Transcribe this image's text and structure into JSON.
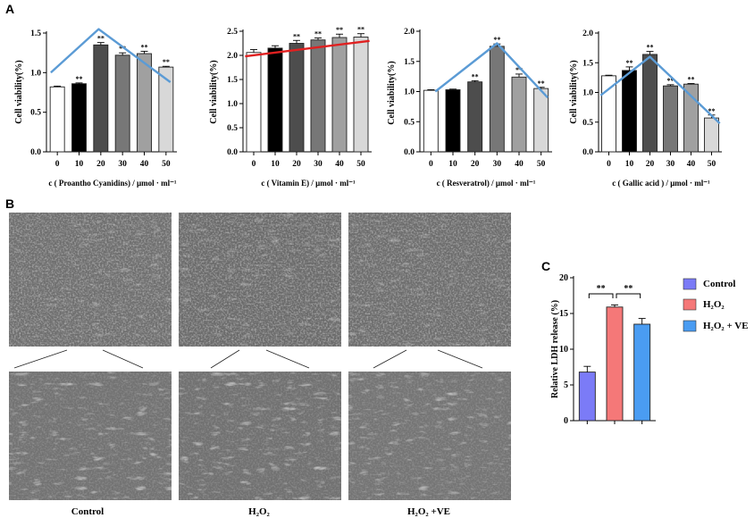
{
  "panels": {
    "a": "A",
    "b": "B",
    "c": "C"
  },
  "colors": {
    "bar_edge": "#222222",
    "blue_line": "#5b9bd5",
    "red_line": "#e02020"
  },
  "chart_data": [
    {
      "type": "bar",
      "categories": [
        "0",
        "10",
        "20",
        "30",
        "40",
        "50"
      ],
      "values": [
        0.82,
        0.86,
        1.35,
        1.22,
        1.24,
        1.07
      ],
      "errors": [
        0.01,
        0.01,
        0.03,
        0.03,
        0.03,
        0.01
      ],
      "significance": [
        "",
        "**",
        "**",
        "**",
        "**",
        "**"
      ],
      "bar_colors": [
        "#ffffff",
        "#000000",
        "#4d4d4d",
        "#777777",
        "#a0a0a0",
        "#d8d8d8"
      ],
      "ylabel": "Cell viability(%)",
      "xlabel": "c ( Proantho Cyanidins) / μmol · ml⁻¹",
      "ylim": [
        0,
        1.5
      ],
      "yticks": [
        "0.0",
        "0.5",
        "1.0",
        "1.5"
      ],
      "trend": {
        "color": "blue",
        "points": [
          [
            -0.3,
            1.0
          ],
          [
            1.9,
            1.55
          ],
          [
            5.2,
            0.88
          ]
        ]
      }
    },
    {
      "type": "bar",
      "categories": [
        "0",
        "10",
        "20",
        "30",
        "40",
        "50"
      ],
      "values": [
        2.06,
        2.15,
        2.25,
        2.32,
        2.37,
        2.38
      ],
      "errors": [
        0.06,
        0.05,
        0.06,
        0.04,
        0.07,
        0.07
      ],
      "significance": [
        "",
        "",
        "**",
        "**",
        "**",
        "**"
      ],
      "bar_colors": [
        "#ffffff",
        "#000000",
        "#4d4d4d",
        "#777777",
        "#a0a0a0",
        "#d8d8d8"
      ],
      "ylabel": "Cell viability(%)",
      "xlabel": "c ( Vitamin E) / μmol · ml⁻¹",
      "ylim": [
        0,
        2.5
      ],
      "yticks": [
        "0.0",
        "0.5",
        "1.0",
        "1.5",
        "2.0",
        "2.5"
      ],
      "trend": {
        "color": "red",
        "points": [
          [
            -0.4,
            1.98
          ],
          [
            5.4,
            2.3
          ]
        ]
      }
    },
    {
      "type": "bar",
      "categories": [
        "0",
        "10",
        "20",
        "30",
        "40",
        "50"
      ],
      "values": [
        1.02,
        1.03,
        1.16,
        1.75,
        1.24,
        1.05
      ],
      "errors": [
        0.01,
        0.01,
        0.02,
        0.04,
        0.05,
        0.02
      ],
      "significance": [
        "",
        "",
        "**",
        "**",
        "**",
        "**"
      ],
      "bar_colors": [
        "#ffffff",
        "#000000",
        "#4d4d4d",
        "#777777",
        "#a0a0a0",
        "#d8d8d8"
      ],
      "ylabel": "Cell viability(%)",
      "xlabel": "c ( Resveratrol) / μmol · ml⁻¹",
      "ylim": [
        0,
        2.0
      ],
      "yticks": [
        "0.0",
        "0.5",
        "1.0",
        "1.5",
        "2.0"
      ],
      "trend": {
        "color": "blue",
        "points": [
          [
            0.2,
            1.0
          ],
          [
            3.0,
            1.8
          ],
          [
            5.3,
            0.9
          ]
        ]
      }
    },
    {
      "type": "bar",
      "categories": [
        "0",
        "10",
        "20",
        "30",
        "40",
        "50"
      ],
      "values": [
        1.28,
        1.37,
        1.64,
        1.11,
        1.14,
        0.57
      ],
      "errors": [
        0.01,
        0.06,
        0.05,
        0.02,
        0.01,
        0.05
      ],
      "significance": [
        "",
        "**",
        "**",
        "**",
        "**",
        "**"
      ],
      "bar_colors": [
        "#ffffff",
        "#000000",
        "#4d4d4d",
        "#777777",
        "#a0a0a0",
        "#d8d8d8"
      ],
      "ylabel": "Cell viability(%)",
      "xlabel": "c ( Gallic acid ) / μmol · ml⁻¹",
      "ylim": [
        0,
        2.0
      ],
      "yticks": [
        "0.0",
        "0.5",
        "1.0",
        "1.5",
        "2.0"
      ],
      "trend": {
        "color": "blue",
        "points": [
          [
            -0.4,
            0.95
          ],
          [
            2.0,
            1.6
          ],
          [
            5.4,
            0.48
          ]
        ]
      }
    },
    {
      "type": "bar",
      "categories": [
        "Control",
        "H₂O₂",
        "H₂O₂ + VE"
      ],
      "values": [
        6.8,
        15.9,
        13.5
      ],
      "errors": [
        0.8,
        0.3,
        0.8
      ],
      "bar_colors": [
        "#7b7bf7",
        "#f57878",
        "#4a9cf2"
      ],
      "ylabel": "Relative LDH release (%)",
      "ylim": [
        0,
        20
      ],
      "yticks": [
        "0",
        "5",
        "10",
        "15",
        "20"
      ],
      "brackets": [
        {
          "from": 0,
          "to": 1,
          "label": "**"
        },
        {
          "from": 1,
          "to": 2,
          "label": "**"
        }
      ],
      "legend": [
        "Control",
        "H₂O₂",
        "H₂O₂ + VE"
      ],
      "legend_position": "right"
    }
  ],
  "micrographs": {
    "labels": [
      "Control",
      "H₂O₂",
      "H₂O₂ +VE"
    ]
  }
}
